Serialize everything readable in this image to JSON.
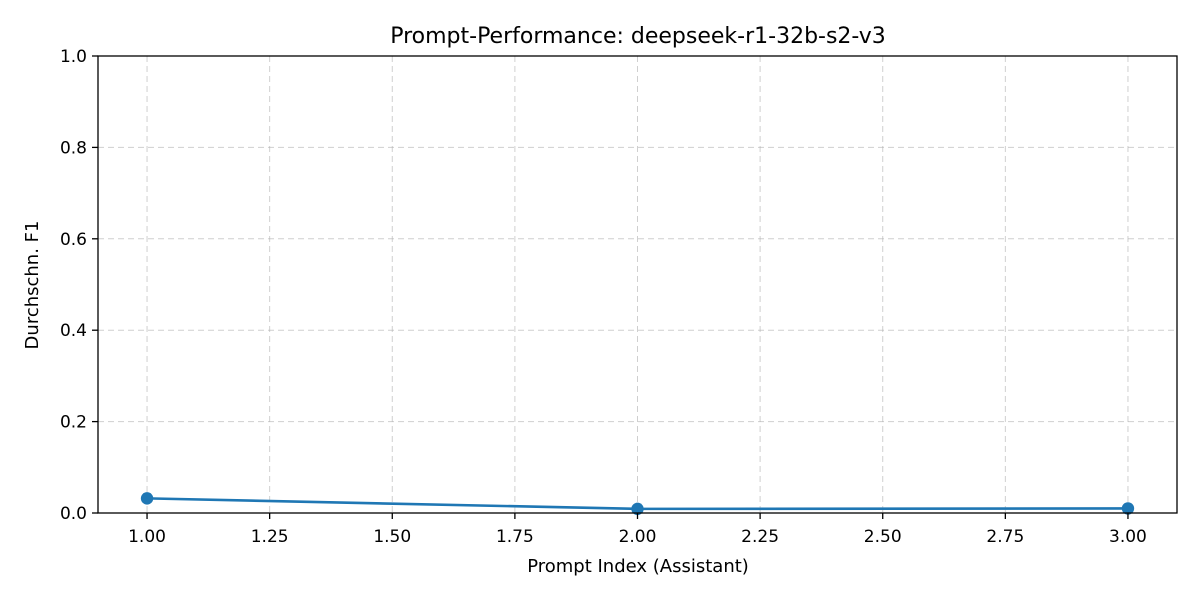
{
  "chart_data": {
    "type": "line",
    "title": "Prompt-Performance: deepseek-r1-32b-s2-v3",
    "xlabel": "Prompt Index (Assistant)",
    "ylabel": "Durchschn. F1",
    "xlim": [
      0.9,
      3.1
    ],
    "ylim": [
      0.0,
      1.0
    ],
    "xticks": [
      1.0,
      1.25,
      1.5,
      1.75,
      2.0,
      2.25,
      2.5,
      2.75,
      3.0
    ],
    "xtick_labels": [
      "1.00",
      "1.25",
      "1.50",
      "1.75",
      "2.00",
      "2.25",
      "2.50",
      "2.75",
      "3.00"
    ],
    "yticks": [
      0.0,
      0.2,
      0.4,
      0.6,
      0.8,
      1.0
    ],
    "ytick_labels": [
      "0.0",
      "0.2",
      "0.4",
      "0.6",
      "0.8",
      "1.0"
    ],
    "grid": true,
    "line_color": "#1f77b4",
    "series": [
      {
        "x": [
          1,
          2,
          3
        ],
        "y": [
          0.032,
          0.009,
          0.01
        ]
      }
    ]
  }
}
